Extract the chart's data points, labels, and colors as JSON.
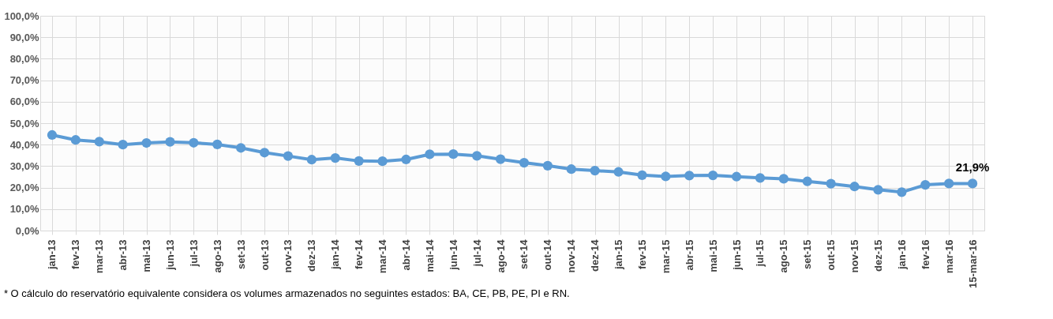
{
  "chart_data": {
    "type": "line",
    "categories": [
      "jan-13",
      "fev-13",
      "mar-13",
      "abr-13",
      "mai-13",
      "jun-13",
      "jul-13",
      "ago-13",
      "set-13",
      "out-13",
      "nov-13",
      "dez-13",
      "jan-14",
      "fev-14",
      "mar-14",
      "abr-14",
      "mai-14",
      "jun-14",
      "jul-14",
      "ago-14",
      "set-14",
      "out-14",
      "nov-14",
      "dez-14",
      "jan-15",
      "fev-15",
      "mar-15",
      "abr-15",
      "mai-15",
      "jun-15",
      "jul-15",
      "ago-15",
      "set-15",
      "out-15",
      "nov-15",
      "dez-15",
      "jan-16",
      "fev-16",
      "mar-16",
      "15-mar-16"
    ],
    "series": [
      {
        "color": "#5b9bd5",
        "values": [
          44.5,
          42.2,
          41.4,
          40.0,
          40.8,
          41.3,
          40.9,
          40.1,
          38.5,
          36.3,
          34.7,
          33.0,
          33.8,
          32.4,
          32.3,
          33.1,
          35.5,
          35.6,
          34.8,
          33.2,
          31.6,
          30.2,
          28.6,
          27.9,
          27.3,
          25.8,
          25.2,
          25.6,
          25.7,
          25.1,
          24.5,
          24.1,
          22.9,
          21.8,
          20.5,
          19.0,
          17.9,
          21.3,
          21.9,
          21.9
        ],
        "value_labels": [
          null,
          null,
          null,
          null,
          null,
          null,
          null,
          null,
          null,
          null,
          null,
          null,
          null,
          null,
          null,
          null,
          null,
          null,
          null,
          null,
          null,
          null,
          null,
          null,
          null,
          null,
          null,
          null,
          null,
          null,
          null,
          null,
          null,
          null,
          null,
          null,
          null,
          null,
          null,
          "21,9%"
        ]
      }
    ],
    "ylim": [
      0,
      100
    ],
    "yticks": [
      {
        "value": 0,
        "label": "0,0%"
      },
      {
        "value": 10,
        "label": "10,0%"
      },
      {
        "value": 20,
        "label": "20,0%"
      },
      {
        "value": 30,
        "label": "30,0%"
      },
      {
        "value": 40,
        "label": "40,0%"
      },
      {
        "value": 50,
        "label": "50,0%"
      },
      {
        "value": 60,
        "label": "60,0%"
      },
      {
        "value": 70,
        "label": "70,0%"
      },
      {
        "value": 80,
        "label": "80,0%"
      },
      {
        "value": 90,
        "label": "90,0%"
      },
      {
        "value": 100,
        "label": "100,0%"
      }
    ],
    "grid": true,
    "marker": "circle",
    "line_style": "solid",
    "annotations": [
      "* O cálculo do reservatório equivalente considera os volumes armazenados no seguintes estados: BA, CE, PB, PE, PI e RN."
    ]
  }
}
